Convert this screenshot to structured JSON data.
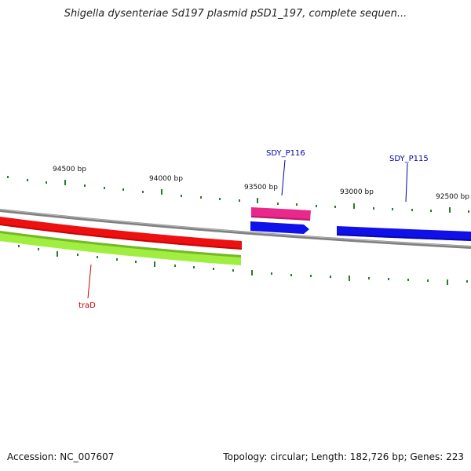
{
  "title": "Shigella dysenteriae Sd197 plasmid pSD1_197, complete sequen...",
  "scale_labels": [
    "94500 bp",
    "94000 bp",
    "93500 bp",
    "93000 bp",
    "92500 bp"
  ],
  "genes": [
    {
      "name": "SDY_P116",
      "color": "#0000aa",
      "strand": "reverse",
      "feature_color": "#e8288a"
    },
    {
      "name": "SDY_P115",
      "color": "#0000aa",
      "strand": "reverse",
      "feature_color": "#1010e8"
    },
    {
      "name": "traD",
      "color": "#cc0000",
      "strand": "forward",
      "feature_color": "#ee1010"
    }
  ],
  "colors": {
    "backbone": "#808080",
    "ticks": "#2a7a2a",
    "forward_feature_red": "#ee1010",
    "forward_feature_green": "#a0ee40",
    "reverse_feature_pink": "#e8288a",
    "reverse_feature_blue": "#1010e8"
  },
  "footer": {
    "accession": "Accession: NC_007607",
    "summary": "Topology: circular; Length: 182,726 bp; Genes: 223"
  }
}
